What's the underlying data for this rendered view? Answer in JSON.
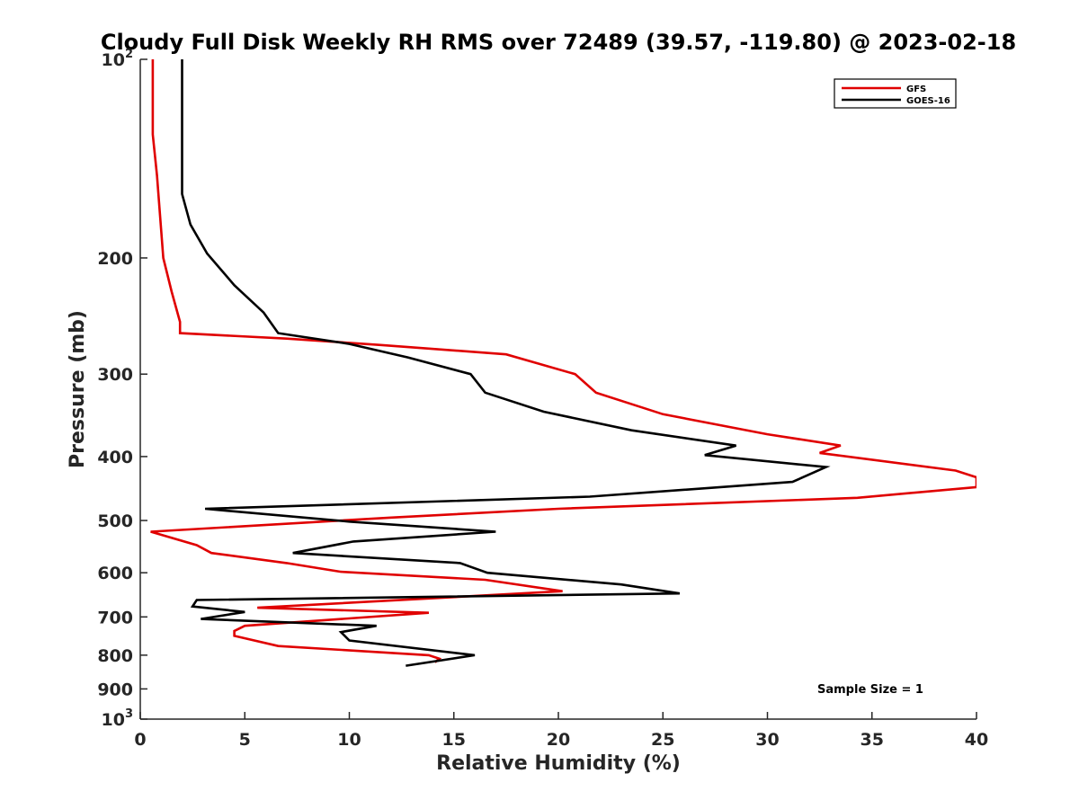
{
  "chart_data": {
    "type": "line",
    "title": "Cloudy Full Disk Weekly RH RMS over 72489 (39.57, -119.80) @ 2023-02-18",
    "xlabel": "Relative Humidity (%)",
    "ylabel": "Pressure (mb)",
    "xlim": [
      0,
      40
    ],
    "ylim": [
      100,
      1000
    ],
    "y_scale": "log",
    "y_reversed": true,
    "grid": false,
    "legend_position": "top-right",
    "x_ticks": [
      0,
      5,
      10,
      15,
      20,
      25,
      30,
      35,
      40
    ],
    "x_tick_labels": [
      "0",
      "5",
      "10",
      "15",
      "20",
      "25",
      "30",
      "35",
      "40"
    ],
    "y_ticks": [
      100,
      200,
      300,
      400,
      500,
      600,
      700,
      800,
      900,
      1000
    ],
    "y_tick_labels": [
      "10^2",
      "200",
      "300",
      "400",
      "500",
      "600",
      "700",
      "800",
      "900",
      "10^3"
    ],
    "annotation": "Sample Size = 1",
    "series": [
      {
        "name": "GFS",
        "color": "#e00000",
        "x": [
          0.6,
          0.6,
          0.6,
          0.8,
          1.1,
          1.5,
          1.9,
          1.9,
          7.0,
          11.5,
          17.5,
          20.8,
          21.8,
          25.0,
          30.0,
          33.5,
          32.5,
          39.0,
          40.0,
          40.0,
          34.3,
          20.0,
          12.0,
          0.5,
          2.7,
          3.4,
          7.0,
          9.6,
          16.5,
          20.2,
          5.6,
          13.8,
          5.0,
          4.5,
          4.5,
          6.6,
          13.8,
          14.3,
          14.1
        ],
        "y": [
          100,
          115,
          130,
          150,
          200,
          225,
          250,
          260,
          265,
          271,
          280,
          300,
          320,
          345,
          370,
          385,
          395,
          420,
          430,
          445,
          462,
          480,
          495,
          520,
          545,
          560,
          580,
          598,
          615,
          640,
          678,
          690,
          722,
          735,
          748,
          775,
          800,
          810,
          820
        ]
      },
      {
        "name": "GOES-16",
        "color": "#000000",
        "x": [
          2.0,
          2.0,
          2.0,
          2.0,
          2.4,
          3.2,
          4.5,
          5.9,
          6.6,
          10.0,
          12.8,
          15.8,
          16.5,
          19.3,
          23.5,
          28.5,
          27.0,
          32.8,
          31.2,
          21.5,
          3.1,
          10.0,
          17.0,
          10.2,
          7.3,
          15.3,
          16.6,
          23.0,
          25.8,
          2.7,
          2.5,
          5.0,
          2.9,
          11.3,
          9.6,
          10.0,
          16.0,
          12.7
        ],
        "y": [
          100,
          120,
          150,
          160,
          178,
          197,
          220,
          242,
          260,
          270,
          283,
          300,
          320,
          342,
          365,
          385,
          398,
          415,
          437,
          460,
          480,
          502,
          520,
          538,
          560,
          580,
          600,
          625,
          645,
          660,
          675,
          688,
          705,
          722,
          738,
          760,
          800,
          830
        ]
      }
    ]
  }
}
